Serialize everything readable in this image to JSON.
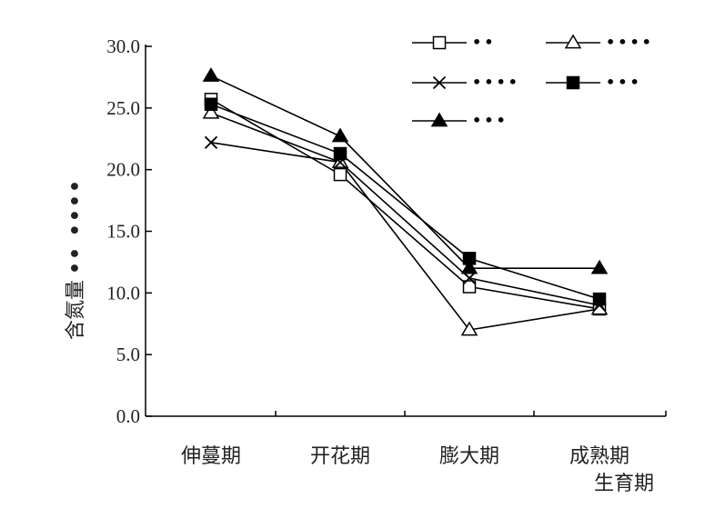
{
  "chart_data": {
    "type": "line",
    "categories": [
      "伸蔓期",
      "开花期",
      "膨大期",
      "成熟期"
    ],
    "x_title": "生育期",
    "y_title": "含氮量",
    "y_title_unit": "•• ••••",
    "ylim": [
      0,
      30
    ],
    "yticks": [
      "0.0",
      "5.0",
      "10.0",
      "15.0",
      "20.0",
      "25.0",
      "30.0"
    ],
    "grid": false,
    "legend_position": "top-right",
    "series": [
      {
        "name": "••",
        "marker": "square-open",
        "values": [
          25.7,
          19.6,
          10.5,
          8.7
        ]
      },
      {
        "name": "••••",
        "marker": "triangle-open",
        "values": [
          24.6,
          20.6,
          7.0,
          8.7
        ]
      },
      {
        "name": "••••",
        "marker": "cross",
        "values": [
          22.2,
          20.6,
          11.2,
          9.0
        ]
      },
      {
        "name": "•••",
        "marker": "square-filled",
        "values": [
          25.3,
          21.3,
          12.8,
          9.5
        ]
      },
      {
        "name": "•••",
        "marker": "triangle-filled",
        "values": [
          27.6,
          22.7,
          12.0,
          12.0
        ]
      }
    ]
  }
}
